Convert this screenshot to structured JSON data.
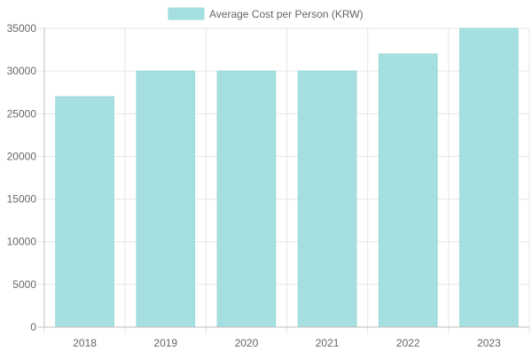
{
  "chart_data": {
    "type": "bar",
    "title": "",
    "xlabel": "",
    "ylabel": "",
    "categories": [
      "2018",
      "2019",
      "2020",
      "2021",
      "2022",
      "2023"
    ],
    "series": [
      {
        "name": "Average Cost per Person (KRW)",
        "values": [
          27000,
          30000,
          30000,
          30000,
          32000,
          35000
        ]
      }
    ],
    "ylim": [
      0,
      35000
    ],
    "yticks": [
      "0",
      "5000",
      "10000",
      "15000",
      "20000",
      "25000",
      "30000",
      "35000"
    ],
    "grid": true,
    "legend": "top-center",
    "colors": {
      "bar_fill": "#a6dfdf",
      "bar_stroke": "#9ad9d9",
      "grid": "#e6e6e6",
      "axis": "#bdbdbd",
      "text": "#666666"
    }
  }
}
